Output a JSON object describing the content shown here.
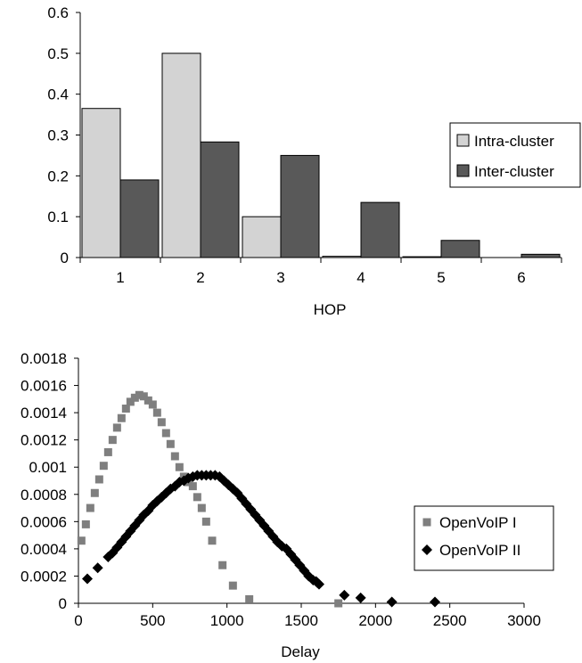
{
  "chart_data": [
    {
      "type": "bar",
      "xlabel": "HOP",
      "ylabel": "",
      "categories": [
        "1",
        "2",
        "3",
        "4",
        "5",
        "6"
      ],
      "ylim": [
        0,
        0.6
      ],
      "yticks": [
        "0",
        "0.1",
        "0.2",
        "0.3",
        "0.4",
        "0.5",
        "0.6"
      ],
      "legend_position": "right",
      "series": [
        {
          "name": "Intra-cluster",
          "color": "#d3d3d3",
          "values": [
            0.365,
            0.5,
            0.1,
            0.003,
            0.002,
            0
          ]
        },
        {
          "name": "Inter-cluster",
          "color": "#595959",
          "values": [
            0.19,
            0.283,
            0.25,
            0.135,
            0.042,
            0.008
          ]
        }
      ]
    },
    {
      "type": "scatter",
      "xlabel": "Delay",
      "ylabel": "",
      "xlim": [
        0,
        3000
      ],
      "ylim": [
        0,
        0.0018
      ],
      "xticks": [
        "0",
        "500",
        "1000",
        "1500",
        "2000",
        "2500",
        "3000"
      ],
      "yticks": [
        "0",
        "0.0002",
        "0.0004",
        "0.0006",
        "0.0008",
        "0.001",
        "0.0012",
        "0.0014",
        "0.0016",
        "0.0018"
      ],
      "legend_position": "right",
      "series": [
        {
          "name": "OpenVoIP I",
          "marker": "square",
          "color": "#7f7f7f",
          "x": [
            20,
            50,
            80,
            110,
            140,
            170,
            200,
            230,
            260,
            290,
            320,
            350,
            380,
            410,
            440,
            470,
            500,
            530,
            560,
            590,
            620,
            650,
            680,
            710,
            740,
            770,
            800,
            830,
            860,
            900,
            970,
            1040,
            1150,
            1750
          ],
          "y": [
            0.00046,
            0.00058,
            0.0007,
            0.00081,
            0.00091,
            0.00101,
            0.00111,
            0.0012,
            0.00129,
            0.00136,
            0.00143,
            0.00148,
            0.00151,
            0.00153,
            0.00152,
            0.00149,
            0.00146,
            0.0014,
            0.00133,
            0.00125,
            0.00117,
            0.00108,
            0.001,
            0.00093,
            0.00089,
            0.00086,
            0.00078,
            0.0007,
            0.0006,
            0.00046,
            0.00028,
            0.00013,
            3e-05,
            0.0
          ]
        },
        {
          "name": "OpenVoIP II",
          "marker": "diamond",
          "color": "#000000",
          "x": [
            60,
            130,
            200,
            230,
            260,
            290,
            320,
            350,
            380,
            410,
            440,
            470,
            500,
            530,
            560,
            590,
            620,
            650,
            680,
            710,
            740,
            770,
            800,
            830,
            860,
            890,
            920,
            950,
            980,
            1010,
            1040,
            1070,
            1100,
            1130,
            1160,
            1190,
            1220,
            1250,
            1280,
            1310,
            1340,
            1370,
            1400,
            1430,
            1460,
            1490,
            1520,
            1550,
            1580,
            1600,
            1610,
            1620,
            1790,
            1900,
            2110,
            2400
          ],
          "y": [
            0.00018,
            0.00026,
            0.00034,
            0.00037,
            0.00041,
            0.00045,
            0.00049,
            0.00053,
            0.00057,
            0.00061,
            0.00065,
            0.00068,
            0.00072,
            0.00075,
            0.00078,
            0.00081,
            0.00084,
            0.00086,
            0.00089,
            0.0009,
            0.00092,
            0.00093,
            0.00094,
            0.00094,
            0.00094,
            0.00094,
            0.00094,
            0.00093,
            0.0009,
            0.00087,
            0.00084,
            0.00081,
            0.00077,
            0.00073,
            0.00069,
            0.00065,
            0.00061,
            0.00057,
            0.00053,
            0.00049,
            0.00045,
            0.00042,
            0.0004,
            0.00036,
            0.00032,
            0.00028,
            0.00024,
            0.0002,
            0.00017,
            0.00016,
            0.00015,
            0.00014,
            6e-05,
            4e-05,
            1e-05,
            1e-05
          ]
        }
      ]
    }
  ]
}
